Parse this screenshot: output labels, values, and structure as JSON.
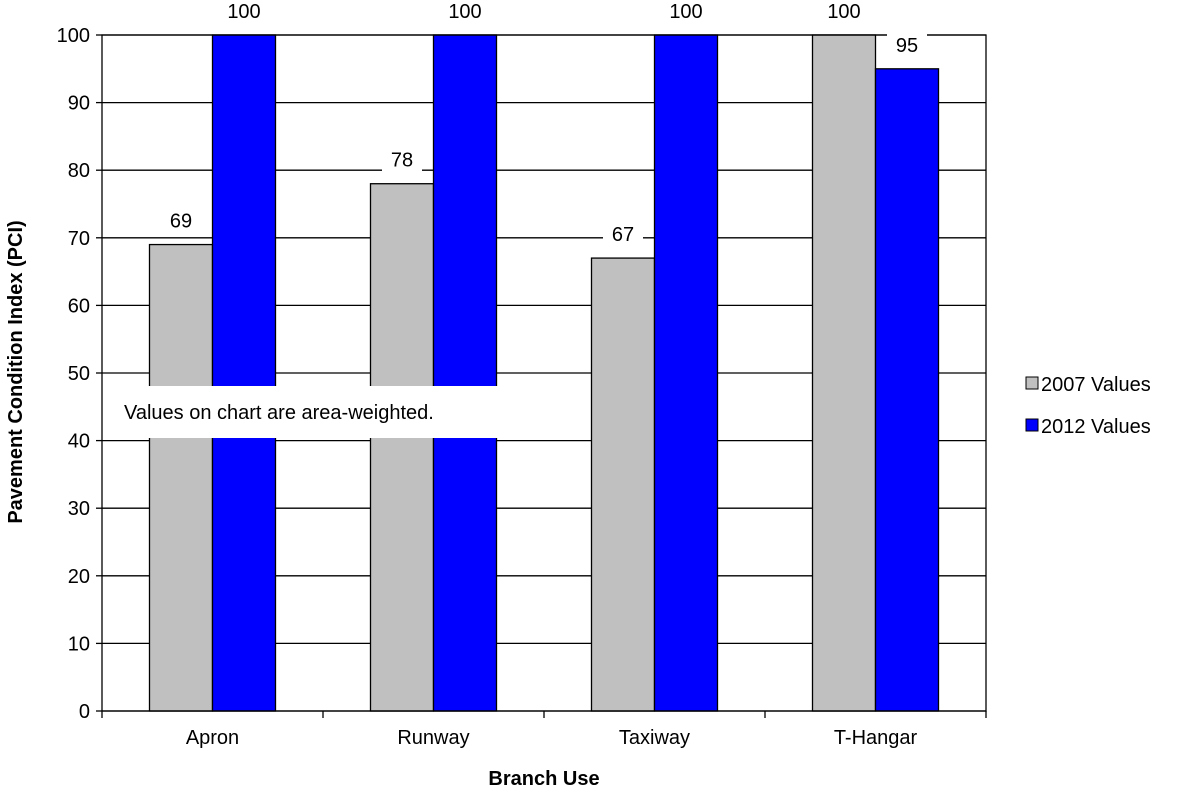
{
  "chart_data": {
    "type": "bar",
    "categories": [
      "Apron",
      "Runway",
      "Taxiway",
      "T-Hangar"
    ],
    "series": [
      {
        "name": "2007 Values",
        "values": [
          69,
          78,
          67,
          100
        ],
        "color": "#c0c0c0"
      },
      {
        "name": "2012 Values",
        "values": [
          100,
          100,
          100,
          95
        ],
        "color": "#0000ff"
      }
    ],
    "xlabel": "Branch Use",
    "ylabel": "Pavement Condition Index (PCI)",
    "ylim": [
      0,
      100
    ],
    "yticks": [
      "0",
      "10",
      "20",
      "30",
      "40",
      "50",
      "60",
      "70",
      "80",
      "90",
      "100"
    ],
    "grid": true,
    "legend": "right",
    "annotation": "Values on chart are area-weighted."
  }
}
